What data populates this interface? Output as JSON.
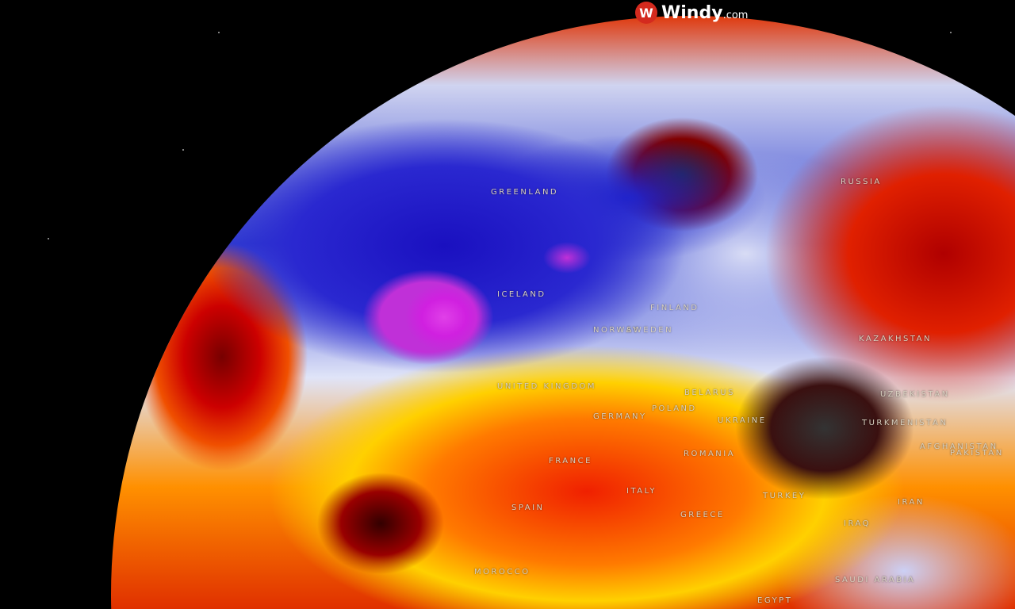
{
  "brand": {
    "name": "Windy",
    "suffix": ".com",
    "icon": "windy-logo-icon",
    "accent": "#d42a1e"
  },
  "map": {
    "type": "globe temperature anomaly",
    "colors": {
      "cold": "#2a28d0",
      "extreme_cold": "#d020e0",
      "neutral": "#e0e4f8",
      "warm": "#ffd000",
      "hot": "#e02000",
      "extreme_hot": "#2a2a2a"
    },
    "labels": [
      "GREENLAND",
      "ICELAND",
      "RUSSIA",
      "FINLAND",
      "NORWAY",
      "SWEDEN",
      "UNITED KINGDOM",
      "BELARUS",
      "POLAND",
      "GERMANY",
      "UKRAINE",
      "KAZAKHSTAN",
      "UZBEKISTAN",
      "TURKMENISTAN",
      "AFGHANISTAN",
      "PAKISTAN",
      "FRANCE",
      "ROMANIA",
      "SPAIN",
      "ITALY",
      "GREECE",
      "TURKEY",
      "IRAN",
      "IRAQ",
      "MOROCCO",
      "SAUDI ARABIA",
      "EGYPT"
    ]
  }
}
